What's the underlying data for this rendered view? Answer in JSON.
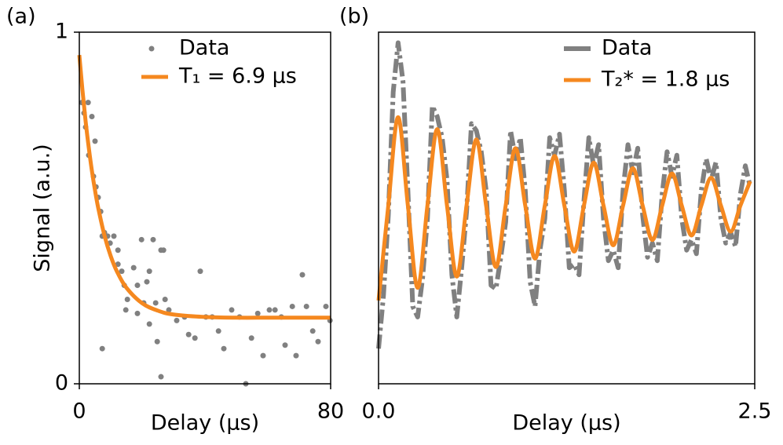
{
  "chart_data": [
    {
      "type": "scatter",
      "panel_label": "(a)",
      "xlabel": "Delay (μs)",
      "ylabel": "Signal (a.u.)",
      "xlim": [
        0,
        80
      ],
      "ylim": [
        0,
        1
      ],
      "xticks": [
        0,
        80
      ],
      "yticks": [
        0,
        1
      ],
      "series": [
        {
          "name": "Data",
          "type": "scatter",
          "color": "#808080",
          "x": [
            0.8,
            1.5,
            2.8,
            2,
            4,
            5,
            3,
            4.5,
            5.3,
            6,
            6.8,
            7.3,
            8,
            9,
            9.8,
            11,
            12.3,
            13.5,
            14.3,
            15.3,
            17.3,
            18.5,
            19.8,
            20.5,
            21.5,
            22.3,
            23.5,
            24.3,
            26,
            26.8,
            7.3,
            12.3,
            14.8,
            18.5,
            22.3,
            24.8,
            26,
            27.3,
            28.5,
            31,
            33.5,
            34.8,
            36.8,
            38.5,
            40.3,
            42.3,
            44.3,
            46,
            48.5,
            51,
            53,
            54.8,
            56.8,
            58.5,
            60.5,
            62.3,
            64.3,
            65.5,
            67.8,
            69,
            71,
            72.3,
            74.3,
            76,
            78.5,
            79.8
          ],
          "values": [
            0.8,
            0.77,
            0.8,
            0.73,
            0.76,
            0.69,
            0.65,
            0.59,
            0.56,
            0.53,
            0.49,
            0.42,
            0.43,
            0.42,
            0.4,
            0.42,
            0.38,
            0.32,
            0.28,
            0.24,
            0.33,
            0.28,
            0.41,
            0.23,
            0.29,
            0.32,
            0.41,
            0.23,
            0.38,
            0.38,
            0.1,
            0.34,
            0.21,
            0.2,
            0.17,
            0.12,
            0.02,
            0.24,
            0.21,
            0.18,
            0.19,
            0.14,
            0.13,
            0.32,
            0.19,
            0.19,
            0.15,
            0.1,
            0.21,
            0.19,
            0,
            0.13,
            0.2,
            0.08,
            0.21,
            0.21,
            0.19,
            0.11,
            0.22,
            0.08,
            0.31,
            0.22,
            0.15,
            0.12,
            0.22,
            0.18
          ]
        },
        {
          "name": "T₁ = 6.9 μs",
          "type": "line",
          "color": "#f5881f",
          "x": [
            0,
            1,
            2,
            3,
            4,
            5,
            6,
            8,
            10,
            12,
            15,
            20,
            25,
            30,
            40,
            50,
            60,
            70,
            80
          ],
          "values": [
            0.935,
            0.835,
            0.747,
            0.672,
            0.606,
            0.55,
            0.501,
            0.422,
            0.363,
            0.319,
            0.273,
            0.229,
            0.208,
            0.197,
            0.19,
            0.188,
            0.188,
            0.188,
            0.188
          ]
        }
      ],
      "legend": "upper right"
    },
    {
      "type": "line",
      "panel_label": "(b)",
      "xlabel": "Delay (μs)",
      "xlim": [
        0,
        2.5
      ],
      "ylim": [
        0,
        1
      ],
      "xticks": [
        {
          "value": 0,
          "label": "0.0"
        },
        2.5
      ],
      "yticks": [],
      "series": [
        {
          "name": "Data",
          "type": "dashdot",
          "color": "#808080",
          "x": [
            0,
            0.0325,
            0.065,
            0.0975,
            0.13,
            0.1625,
            0.195,
            0.2275,
            0.26,
            0.2925,
            0.325,
            0.3575,
            0.39,
            0.4225,
            0.455,
            0.4875,
            0.52,
            0.5525,
            0.585,
            0.6175,
            0.65,
            0.6825,
            0.715,
            0.7475,
            0.78,
            0.8125,
            0.845,
            0.8775,
            0.91,
            0.9425,
            0.975,
            1.0075,
            1.04,
            1.0725,
            1.105,
            1.1375,
            1.17,
            1.2025,
            1.235,
            1.2675,
            1.3,
            1.3325,
            1.365,
            1.3975,
            1.43,
            1.4625,
            1.495,
            1.5275,
            1.56,
            1.5925,
            1.625,
            1.6575,
            1.69,
            1.7225,
            1.755,
            1.7875,
            1.82,
            1.8525,
            1.885,
            1.9175,
            1.95,
            1.9825,
            2.015,
            2.0475,
            2.08,
            2.1125,
            2.145,
            2.1775,
            2.21,
            2.2425,
            2.275,
            2.3075,
            2.34,
            2.3725,
            2.405,
            2.4375,
            2.47
          ],
          "values": [
            0.1,
            0.25,
            0.48,
            0.83,
            0.97,
            0.86,
            0.55,
            0.22,
            0.19,
            0.3,
            0.47,
            0.79,
            0.76,
            0.7,
            0.58,
            0.31,
            0.19,
            0.33,
            0.49,
            0.74,
            0.72,
            0.66,
            0.55,
            0.28,
            0.27,
            0.36,
            0.46,
            0.72,
            0.64,
            0.7,
            0.55,
            0.29,
            0.22,
            0.38,
            0.47,
            0.7,
            0.65,
            0.71,
            0.55,
            0.33,
            0.34,
            0.31,
            0.52,
            0.7,
            0.62,
            0.68,
            0.47,
            0.35,
            0.38,
            0.33,
            0.55,
            0.68,
            0.6,
            0.67,
            0.48,
            0.36,
            0.4,
            0.35,
            0.54,
            0.66,
            0.59,
            0.65,
            0.47,
            0.38,
            0.41,
            0.37,
            0.55,
            0.64,
            0.58,
            0.63,
            0.47,
            0.4,
            0.43,
            0.39,
            0.54,
            0.62,
            0.56
          ]
        },
        {
          "name": "T₂* = 1.8 μs",
          "type": "line",
          "color": "#f5881f",
          "x": [
            0,
            0.065,
            0.13,
            0.195,
            0.26,
            0.325,
            0.39,
            0.455,
            0.52,
            0.585,
            0.65,
            0.715,
            0.78,
            0.845,
            0.91,
            0.975,
            1.04,
            1.105,
            1.17,
            1.235,
            1.3,
            1.365,
            1.43,
            1.495,
            1.56,
            1.625,
            1.69,
            1.755,
            1.82,
            1.885,
            1.95,
            2.015,
            2.08,
            2.145,
            2.21,
            2.275,
            2.34,
            2.405,
            2.47
          ],
          "values": [
            0.237,
            0.507,
            0.758,
            0.507,
            0.273,
            0.507,
            0.724,
            0.507,
            0.305,
            0.507,
            0.695,
            0.507,
            0.332,
            0.507,
            0.67,
            0.507,
            0.356,
            0.507,
            0.648,
            0.507,
            0.376,
            0.507,
            0.629,
            0.507,
            0.394,
            0.507,
            0.613,
            0.507,
            0.409,
            0.507,
            0.598,
            0.507,
            0.422,
            0.507,
            0.586,
            0.507,
            0.433,
            0.507,
            0.576
          ]
        }
      ],
      "legend": "upper right"
    }
  ]
}
